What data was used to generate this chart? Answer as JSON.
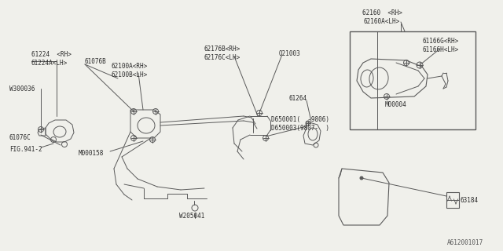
{
  "bg_color": "#f0f0eb",
  "line_color": "#5a5a5a",
  "title_bottom": "A612001017",
  "labels": {
    "lbl_61224": "61224  <RH>\n61224A<LH>",
    "lbl_61076B": "61076B",
    "lbl_W300036": "W300036",
    "lbl_61076C": "61076C",
    "lbl_FIG941": "FIG.941-2",
    "lbl_62100": "62100A<RH>\n62100B<LH>",
    "lbl_M000158": "M000158",
    "lbl_62176": "62176B<RH>\n62176C<LH>",
    "lbl_Q21003": "Q21003",
    "lbl_61264": "61264",
    "lbl_D650001": "D650001(  -9806)\nD650003(9807-  )",
    "lbl_W205041": "W205041",
    "lbl_62160": "62160  <RH>\n62160A<LH>",
    "lbl_61166": "61166G<RH>\n61166H<LH>",
    "lbl_M00004": "M00004",
    "lbl_63184": "63184"
  }
}
